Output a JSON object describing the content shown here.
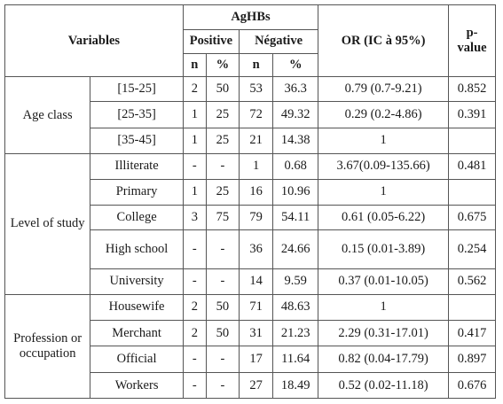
{
  "headers": {
    "variables": "Variables",
    "group": "AgHBs",
    "positive": "Positive",
    "negative": "Négative",
    "or": "OR (IC à 95%)",
    "pvalue": "p-value",
    "n": "n",
    "pct": "%"
  },
  "groups": [
    {
      "label": "Age class",
      "rows": [
        {
          "cat": "[15-25]",
          "pn": "2",
          "pp": "50",
          "nn": "53",
          "np": "36.3",
          "or": "0.79 (0.7-9.21)",
          "p": "0.852"
        },
        {
          "cat": "[25-35]",
          "pn": "1",
          "pp": "25",
          "nn": "72",
          "np": "49.32",
          "or": "0.29 (0.2-4.86)",
          "p": "0.391"
        },
        {
          "cat": "[35-45]",
          "pn": "1",
          "pp": "25",
          "nn": "21",
          "np": "14.38",
          "or": "1",
          "p": ""
        }
      ]
    },
    {
      "label": "Level of study",
      "rows": [
        {
          "cat": "Illiterate",
          "pn": "-",
          "pp": "-",
          "nn": "1",
          "np": "0.68",
          "or": "3.67(0.09-135.66)",
          "p": "0.481"
        },
        {
          "cat": "Primary",
          "pn": "1",
          "pp": "25",
          "nn": "16",
          "np": "10.96",
          "or": "1",
          "p": ""
        },
        {
          "cat": "College",
          "pn": "3",
          "pp": "75",
          "nn": "79",
          "np": "54.11",
          "or": "0.61 (0.05-6.22)",
          "p": "0.675"
        },
        {
          "cat": "High school",
          "pn": "-",
          "pp": "-",
          "nn": "36",
          "np": "24.66",
          "or": "0.15 (0.01-3.89)",
          "p": "0.254"
        },
        {
          "cat": "University",
          "pn": "-",
          "pp": "-",
          "nn": "14",
          "np": "9.59",
          "or": "0.37 (0.01-10.05)",
          "p": "0.562"
        }
      ]
    },
    {
      "label": "Profession or occupation",
      "rows": [
        {
          "cat": "Housewife",
          "pn": "2",
          "pp": "50",
          "nn": "71",
          "np": "48.63",
          "or": "1",
          "p": ""
        },
        {
          "cat": "Merchant",
          "pn": "2",
          "pp": "50",
          "nn": "31",
          "np": "21.23",
          "or": "2.29 (0.31-17.01)",
          "p": "0.417"
        },
        {
          "cat": "Official",
          "pn": "-",
          "pp": "-",
          "nn": "17",
          "np": "11.64",
          "or": "0.82 (0.04-17.79)",
          "p": "0.897"
        },
        {
          "cat": "Workers",
          "pn": "-",
          "pp": "-",
          "nn": "27",
          "np": "18.49",
          "or": "0.52 (0.02-11.18)",
          "p": "0.676"
        }
      ]
    }
  ]
}
